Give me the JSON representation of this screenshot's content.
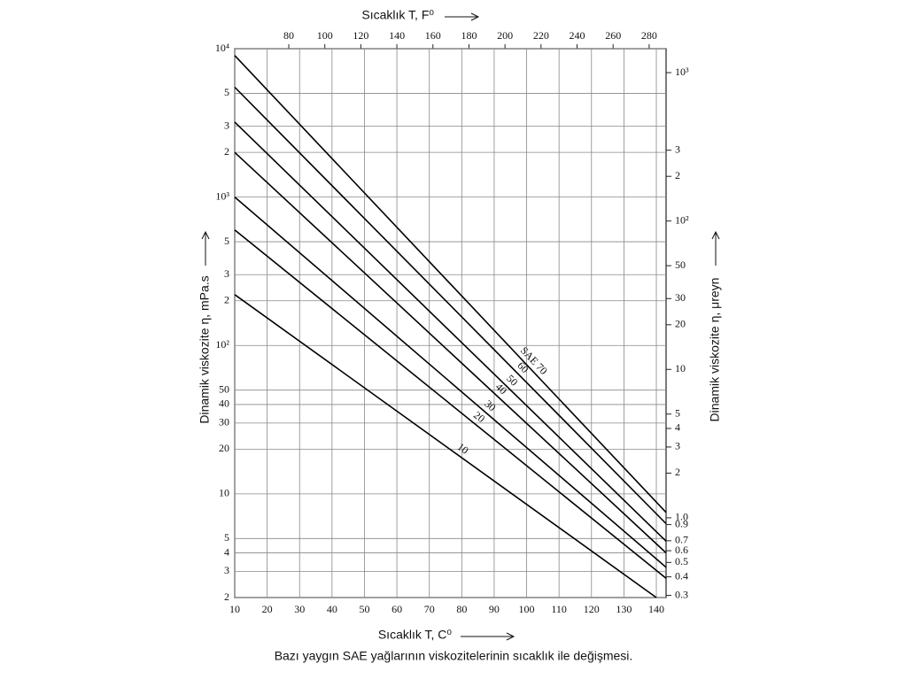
{
  "chart_data": {
    "type": "line",
    "x2_label": "Sıcaklık T, F⁰",
    "xlabel": "Sıcaklık T, C⁰",
    "ylabel": "Dinamik viskozite η, mPa.s",
    "y2label": "Dinamik viskozite η, μreyn",
    "caption": "Bazı yaygın SAE yağlarının viskozitelerinin sıcaklık ile değişmesi.",
    "yscale": "log",
    "grid": true,
    "xlim": [
      10,
      143
    ],
    "xticks": [
      10,
      20,
      30,
      40,
      50,
      60,
      70,
      80,
      90,
      100,
      110,
      120,
      130,
      140
    ],
    "x2lim": [
      50,
      289.4
    ],
    "x2ticks": [
      80,
      100,
      120,
      140,
      160,
      180,
      200,
      220,
      240,
      260,
      280
    ],
    "ylim": [
      2,
      10000
    ],
    "yticks": [
      {
        "value": 10000,
        "label": "10⁴"
      },
      {
        "value": 5000,
        "label": "5"
      },
      {
        "value": 3000,
        "label": "3"
      },
      {
        "value": 2000,
        "label": "2"
      },
      {
        "value": 1000,
        "label": "10³"
      },
      {
        "value": 500,
        "label": "5"
      },
      {
        "value": 300,
        "label": "3"
      },
      {
        "value": 200,
        "label": "2"
      },
      {
        "value": 100,
        "label": "10²"
      },
      50,
      40,
      30,
      20,
      10,
      5,
      4,
      3,
      2
    ],
    "y2lim": [
      0.29,
      1450
    ],
    "y2ticks": [
      {
        "value": 1000,
        "label": "10³"
      },
      {
        "value": 300,
        "label": "3"
      },
      {
        "value": 200,
        "label": "2"
      },
      {
        "value": 100,
        "label": "10²"
      },
      50,
      30,
      20,
      10,
      5,
      4,
      3,
      2,
      {
        "value": 1,
        "label": "1.0"
      },
      0.9,
      0.7,
      0.6,
      0.5,
      0.4,
      0.3
    ],
    "series": [
      {
        "name": "SAE 70",
        "color": "#000000",
        "x": [
          10,
          143
        ],
        "values": [
          9000,
          7.5
        ]
      },
      {
        "name": "60",
        "color": "#000000",
        "x": [
          10,
          143
        ],
        "values": [
          5500,
          6.3
        ]
      },
      {
        "name": "50",
        "color": "#000000",
        "x": [
          10,
          143
        ],
        "values": [
          3200,
          4.8
        ]
      },
      {
        "name": "40",
        "color": "#000000",
        "x": [
          10,
          143
        ],
        "values": [
          2000,
          4
        ]
      },
      {
        "name": "30",
        "color": "#000000",
        "x": [
          10,
          143
        ],
        "values": [
          1000,
          3.2
        ]
      },
      {
        "name": "20",
        "color": "#000000",
        "x": [
          10,
          143
        ],
        "values": [
          600,
          2.7
        ]
      },
      {
        "name": "10",
        "color": "#000000",
        "x": [
          10,
          140
        ],
        "values": [
          220,
          2
        ]
      }
    ]
  }
}
